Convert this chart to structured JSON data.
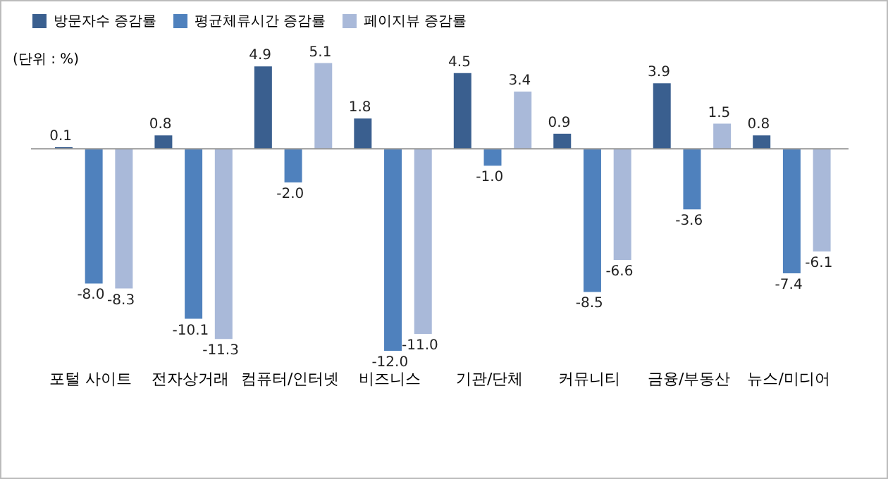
{
  "chart_data": {
    "type": "bar",
    "annotations": [
      "(단위 : %)"
    ],
    "categories": [
      "포털 사이트",
      "전자상거래",
      "컴퓨터/인터넷",
      "비즈니스",
      "기관/단체",
      "커뮤니티",
      "금융/부동산",
      "뉴스/미디어"
    ],
    "series": [
      {
        "name": "방문자수 증감률",
        "color": "#3a5f8f",
        "values": [
          0.1,
          0.8,
          4.9,
          1.8,
          4.5,
          0.9,
          3.9,
          0.8
        ],
        "value_labels": [
          "0.1",
          "0.8",
          "4.9",
          "1.8",
          "4.5",
          "0.9",
          "3.9",
          "0.8"
        ]
      },
      {
        "name": "평균체류시간 증감률",
        "color": "#4f81bd",
        "values": [
          -8.0,
          -10.1,
          -2.0,
          -12.0,
          -1.0,
          -8.5,
          -3.6,
          -7.4
        ],
        "value_labels": [
          "-8.0",
          "-10.1",
          "-2.0",
          "-12.0",
          "-1.0",
          "-8.5",
          "-3.6",
          "-7.4"
        ]
      },
      {
        "name": "페이지뷰 증감률",
        "color": "#a9b9d9",
        "values": [
          -8.3,
          -11.3,
          5.1,
          -11.0,
          3.4,
          -6.6,
          1.5,
          -6.1
        ],
        "value_labels": [
          "-8.3",
          "-11.3",
          "5.1",
          "-11.0",
          "3.4",
          "-6.6",
          "1.5",
          "-6.1"
        ]
      }
    ],
    "legend": "top",
    "tick_labels": "x",
    "grid": false
  }
}
